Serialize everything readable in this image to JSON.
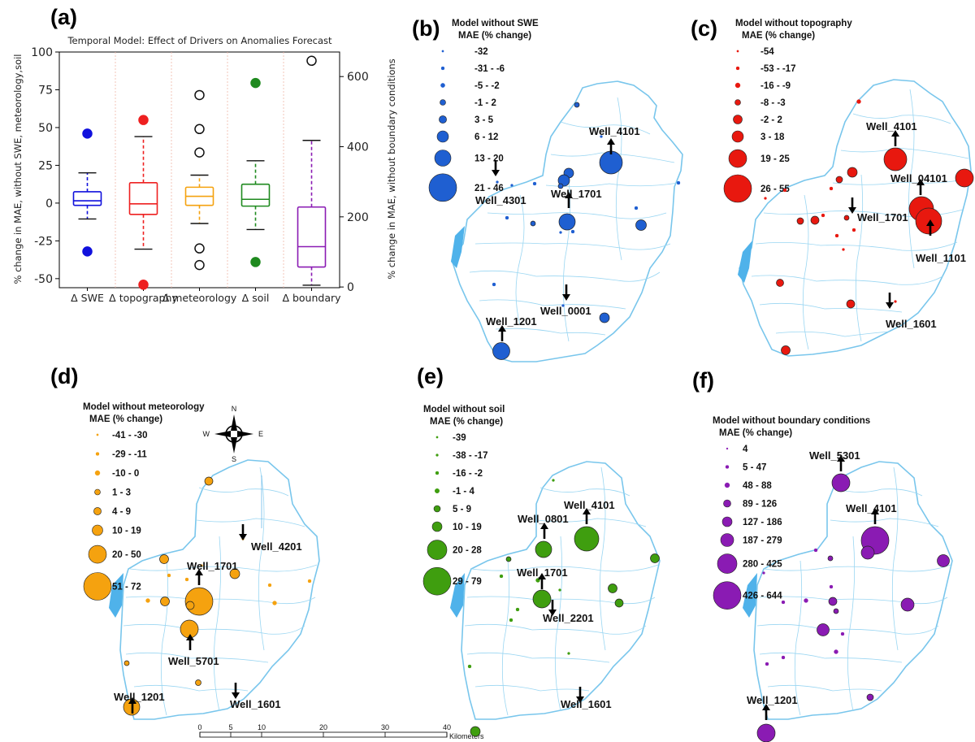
{
  "panel_labels": [
    "(a)",
    "(b)",
    "(c)",
    "(d)",
    "(e)",
    "(f)"
  ],
  "colors": {
    "swe": "#1f5fd1",
    "topography": "#e8180f",
    "meteorology": "#f5a20f",
    "soil": "#3f9e0f",
    "boundary": "#8a1bb3",
    "water": "#8fd3f0",
    "river": "#7fc8ee",
    "gray_grid": "#f0b6a8"
  },
  "chart_data": [
    {
      "type": "box",
      "title": "Temporal Model: Effect of Drivers on Anomalies Forecast",
      "ylabel": "% change in MAE, without SWE, meteorology,soil",
      "y2label": "% change in MAE, without boundary conditions",
      "ylim": [
        -56,
        100
      ],
      "yticks": [
        -50,
        -25,
        0,
        25,
        50,
        75,
        100
      ],
      "y2lim": [
        -2,
        670
      ],
      "y2ticks": [
        0,
        200,
        400,
        600
      ],
      "categories": [
        "Δ SWE",
        "Δ topography",
        "Δ meteorology",
        "Δ soil",
        "Δ boundary"
      ],
      "boxes": [
        {
          "axis": "left",
          "color": "#1111dd",
          "whislo": -10.5,
          "q1": -1.5,
          "med": 1.5,
          "q3": 7.5,
          "whishi": 20,
          "fliers": [
            46,
            -32
          ],
          "flier_style": "filled"
        },
        {
          "axis": "left",
          "color": "#ee2020",
          "whislo": -30.5,
          "q1": -7.5,
          "med": -0.5,
          "q3": 13.5,
          "whishi": 44,
          "fliers": [
            55,
            -54
          ],
          "flier_style": "filled"
        },
        {
          "axis": "left",
          "color": "#f5a20f",
          "whislo": -13.5,
          "q1": -1.5,
          "med": 4.5,
          "q3": 10.5,
          "whishi": 18.5,
          "fliers": [
            71.5,
            49,
            33.5,
            -30,
            -41
          ],
          "flier_style": "open"
        },
        {
          "axis": "left",
          "color": "#1f8a1f",
          "whislo": -17.5,
          "q1": -2,
          "med": 2.5,
          "q3": 12.5,
          "whishi": 28,
          "fliers": [
            79.5,
            -39
          ],
          "flier_style": "filled"
        },
        {
          "axis": "right",
          "color": "#8a1bb3",
          "whislo": 5,
          "q1": 57,
          "med": 115,
          "q3": 228,
          "whishi": 418,
          "fliers": [
            645
          ],
          "flier_style": "open"
        }
      ]
    },
    {
      "type": "map",
      "legend_title": [
        "Model without SWE",
        "MAE (% change)"
      ],
      "legend": [
        "-32",
        "-31 - -6",
        "-5 - -2",
        "-1 - 2",
        "3 - 5",
        "6 - 12",
        "13 - 20",
        "21 - 46"
      ],
      "wells": [
        "Well_4101",
        "Well_4301",
        "Well_1701",
        "Well_0001",
        "Well_1201"
      ]
    },
    {
      "type": "map",
      "legend_title": [
        "Model without topography",
        "MAE (% change)"
      ],
      "legend": [
        "-54",
        "-53 - -17",
        "-16 - -9",
        "-8 - -3",
        "-2 - 2",
        "3 - 18",
        "19 - 25",
        "26 - 55"
      ],
      "wells": [
        "Well_4101",
        "Well_04101",
        "Well_1701",
        "Well_1101",
        "Well_1601"
      ]
    },
    {
      "type": "map",
      "legend_title": [
        "Model without meteorology",
        "MAE (% change)"
      ],
      "legend": [
        "-41 - -30",
        "-29 - -11",
        "-10 - 0",
        "1 - 3",
        "4 - 9",
        "10 - 19",
        "20 - 50",
        "51 - 72"
      ],
      "wells": [
        "Well_4201",
        "Well_1701",
        "Well_5701",
        "Well_1601",
        "Well_1201"
      ],
      "compass": [
        "N",
        "E",
        "S",
        "W"
      ],
      "scale": {
        "ticks": [
          "0",
          "5",
          "10",
          "20",
          "30",
          "40"
        ],
        "unit": "Kilometers"
      }
    },
    {
      "type": "map",
      "legend_title": [
        "Model without soil",
        "MAE (% change)"
      ],
      "legend": [
        "-39",
        "-38 - -17",
        "-16 - -2",
        "-1 - 4",
        "5 - 9",
        "10 - 19",
        "20 - 28",
        "29 - 79"
      ],
      "wells": [
        "Well_0801",
        "Well_4101",
        "Well_1701",
        "Well_2201",
        "Well_1601"
      ]
    },
    {
      "type": "map",
      "legend_title": [
        "Model without boundary conditions",
        "MAE (% change)"
      ],
      "legend": [
        "4",
        "5 - 47",
        "48 - 88",
        "89 - 126",
        "127 - 186",
        "187 - 279",
        "280 - 425",
        "426 - 644"
      ],
      "wells": [
        "Well_5301",
        "Well_4101",
        "Well_1201"
      ]
    }
  ]
}
